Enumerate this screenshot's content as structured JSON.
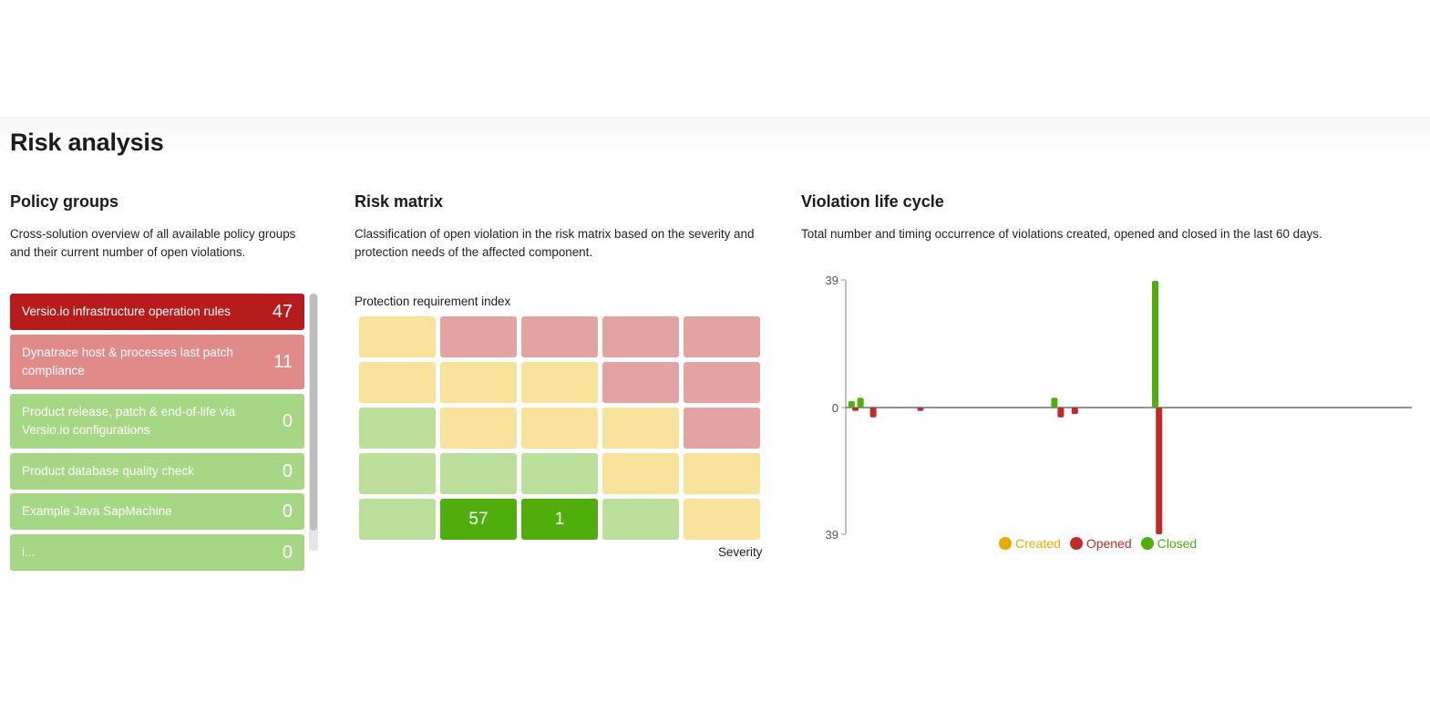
{
  "page": {
    "title": "Risk analysis"
  },
  "policy_groups": {
    "title": "Policy groups",
    "description": "Cross-solution overview of all available policy groups and their current number of open violations.",
    "items": [
      {
        "label": "Versio.io infrastructure operation rules",
        "count": "47",
        "status": "critical",
        "color": "#b71c1c"
      },
      {
        "label": "Dynatrace host & processes last patch compliance",
        "count": "11",
        "status": "warning",
        "color": "#e08a8a"
      },
      {
        "label": "Product release, patch & end-of-life via Versio.io configurations",
        "count": "0",
        "status": "ok",
        "color": "#a6d785"
      },
      {
        "label": "Product database quality check",
        "count": "0",
        "status": "ok",
        "color": "#a6d785"
      },
      {
        "label": "Example Java SapMachine",
        "count": "0",
        "status": "ok",
        "color": "#a6d785"
      },
      {
        "label": "i...",
        "count": "0",
        "status": "ok",
        "color": "#a6d785"
      }
    ]
  },
  "risk_matrix": {
    "title": "Risk matrix",
    "description": "Classification of open violation in the risk matrix based on the severity and protection needs of the affected component.",
    "y_axis_label": "Protection requirement index",
    "x_axis_label": "Severity",
    "colors": {
      "Y": "#f8e29c",
      "R": "#e3a3a3",
      "G": "#bce09b",
      "D": "#4fae0c"
    },
    "rows": [
      [
        {
          "c": "Y",
          "v": ""
        },
        {
          "c": "R",
          "v": ""
        },
        {
          "c": "R",
          "v": ""
        },
        {
          "c": "R",
          "v": ""
        },
        {
          "c": "R",
          "v": ""
        }
      ],
      [
        {
          "c": "Y",
          "v": ""
        },
        {
          "c": "Y",
          "v": ""
        },
        {
          "c": "Y",
          "v": ""
        },
        {
          "c": "R",
          "v": ""
        },
        {
          "c": "R",
          "v": ""
        }
      ],
      [
        {
          "c": "G",
          "v": ""
        },
        {
          "c": "Y",
          "v": ""
        },
        {
          "c": "Y",
          "v": ""
        },
        {
          "c": "Y",
          "v": ""
        },
        {
          "c": "R",
          "v": ""
        }
      ],
      [
        {
          "c": "G",
          "v": ""
        },
        {
          "c": "G",
          "v": ""
        },
        {
          "c": "G",
          "v": ""
        },
        {
          "c": "Y",
          "v": ""
        },
        {
          "c": "Y",
          "v": ""
        }
      ],
      [
        {
          "c": "G",
          "v": ""
        },
        {
          "c": "D",
          "v": "57"
        },
        {
          "c": "D",
          "v": "1"
        },
        {
          "c": "G",
          "v": ""
        },
        {
          "c": "Y",
          "v": ""
        }
      ]
    ]
  },
  "violation_life_cycle": {
    "title": "Violation life cycle",
    "description": "Total number and timing occurrence of violations created, opened and closed in the last 60 days.",
    "legend": [
      {
        "name": "Created",
        "color": "#e6ad00"
      },
      {
        "name": "Opened",
        "color": "#bf2a2a"
      },
      {
        "name": "Closed",
        "color": "#4fae0c"
      }
    ]
  },
  "chart_data": {
    "type": "bar",
    "y_tick_labels": [
      "39",
      "0",
      "39"
    ],
    "ylim": [
      -39,
      39
    ],
    "x_range_days": [
      0,
      60
    ],
    "series": [
      {
        "name": "Created",
        "points": []
      },
      {
        "name": "Closed",
        "points": [
          {
            "day": 0.2,
            "value": 2
          },
          {
            "day": 0.9,
            "value": 3
          },
          {
            "day": 16.1,
            "value": 3
          },
          {
            "day": 24.0,
            "value": 39
          }
        ]
      },
      {
        "name": "Opened",
        "points": [
          {
            "day": 0.5,
            "value": -1
          },
          {
            "day": 1.9,
            "value": -3
          },
          {
            "day": 5.6,
            "value": -1
          },
          {
            "day": 16.6,
            "value": -3
          },
          {
            "day": 17.7,
            "value": -2
          },
          {
            "day": 24.3,
            "value": -39
          }
        ]
      }
    ]
  }
}
